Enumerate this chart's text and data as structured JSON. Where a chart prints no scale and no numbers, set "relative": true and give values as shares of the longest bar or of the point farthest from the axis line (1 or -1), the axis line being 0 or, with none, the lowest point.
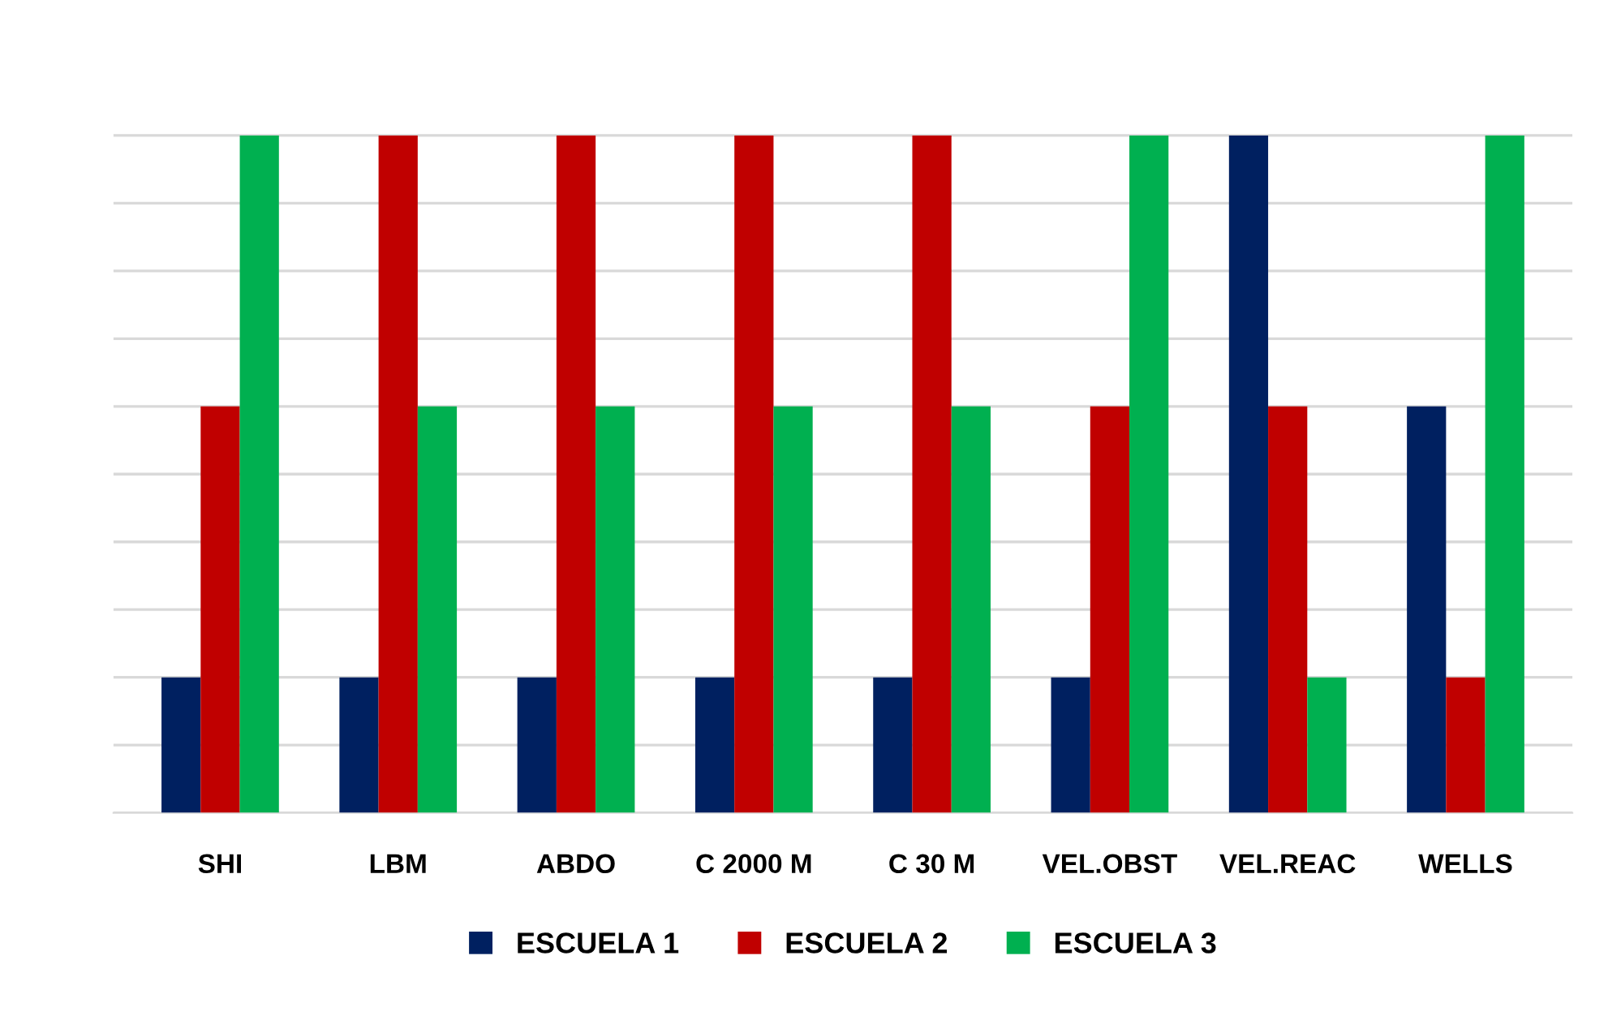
{
  "chart_data": {
    "type": "bar",
    "relative": true,
    "categories": [
      "SHI",
      "LBM",
      "ABDO",
      "C 2000 M",
      "C 30 M",
      "VEL.OBST",
      "VEL.REAC",
      "WELLS"
    ],
    "series": [
      {
        "name": "ESCUELA 1",
        "color": "#002060",
        "values": [
          0.2,
          0.2,
          0.2,
          0.2,
          0.2,
          0.2,
          1,
          0.6
        ]
      },
      {
        "name": "ESCUELA 2",
        "color": "#c00000",
        "values": [
          0.6,
          1,
          1,
          1,
          1,
          0.6,
          0.6,
          0.2
        ]
      },
      {
        "name": "ESCUELA 3",
        "color": "#00b050",
        "values": [
          1,
          0.6,
          0.6,
          0.6,
          0.6,
          1,
          0.2,
          1
        ]
      }
    ],
    "grid": "y",
    "legend": "bottom"
  }
}
